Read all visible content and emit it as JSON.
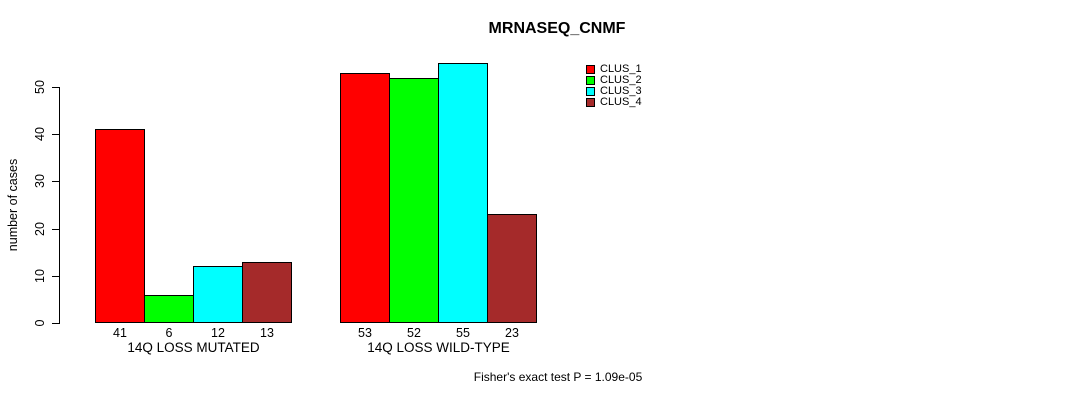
{
  "chart_data": {
    "type": "bar",
    "title": "MRNASEQ_CNMF",
    "ylabel": "number of cases",
    "categories": [
      "14Q LOSS MUTATED",
      "14Q LOSS WILD-TYPE"
    ],
    "series": [
      {
        "name": "CLUS_1",
        "color": "#ff0000",
        "values": [
          41,
          53
        ]
      },
      {
        "name": "CLUS_2",
        "color": "#00ff00",
        "values": [
          6,
          52
        ]
      },
      {
        "name": "CLUS_3",
        "color": "#00ffff",
        "values": [
          12,
          55
        ]
      },
      {
        "name": "CLUS_4",
        "color": "#a52a2a",
        "values": [
          13,
          23
        ]
      }
    ],
    "yticks": [
      0,
      10,
      20,
      30,
      40,
      50
    ],
    "ylim": [
      0,
      55
    ],
    "bar_value_labels": true,
    "grid": false,
    "legend_position": "right",
    "annotation": "Fisher's exact test P = 1.09e-05"
  },
  "colors": {
    "background": "#ffffff",
    "axis": "#000000",
    "bar_border": "#000000",
    "text": "#000000"
  }
}
